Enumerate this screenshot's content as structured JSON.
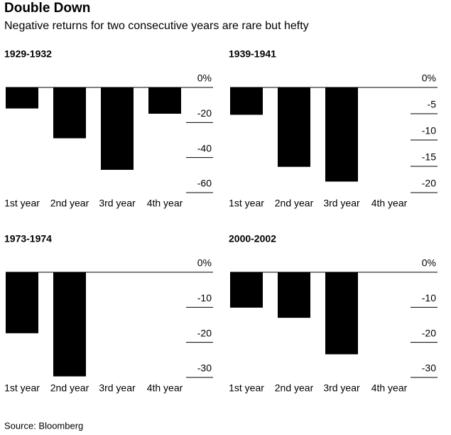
{
  "title": "Double Down",
  "subtitle": "Negative returns for two consecutive years are rare but hefty",
  "source": "Source: Bloomberg",
  "chart_data": [
    {
      "type": "bar",
      "title": "1929-1932",
      "categories": [
        "1st year",
        "2nd year",
        "3rd year",
        "4th year"
      ],
      "values": [
        -12,
        -29,
        -47,
        -15
      ],
      "color": "#000000",
      "ylim": [
        -60,
        0
      ],
      "yticks": [
        {
          "value": 0,
          "label": "0%"
        },
        -20,
        -40,
        -60
      ]
    },
    {
      "type": "bar",
      "title": "1939-1941",
      "categories": [
        "1st year",
        "2nd year",
        "3rd year",
        "4th year"
      ],
      "values": [
        -5.2,
        -15.1,
        -17.9,
        null
      ],
      "color": "#000000",
      "ylim": [
        -20,
        0
      ],
      "yticks": [
        {
          "value": 0,
          "label": "0%"
        },
        -5,
        -10,
        -15,
        -20
      ]
    },
    {
      "type": "bar",
      "title": "1973-1974",
      "categories": [
        "1st year",
        "2nd year",
        "3rd year",
        "4th year"
      ],
      "values": [
        -17.4,
        -29.7,
        null,
        null
      ],
      "color": "#000000",
      "ylim": [
        -30,
        0
      ],
      "yticks": [
        {
          "value": 0,
          "label": "0%"
        },
        -10,
        -20,
        -30
      ]
    },
    {
      "type": "bar",
      "title": "2000-2002",
      "categories": [
        "1st year",
        "2nd year",
        "3rd year",
        "4th year"
      ],
      "values": [
        -10.1,
        -13,
        -23.4,
        null
      ],
      "color": "#000000",
      "ylim": [
        -30,
        0
      ],
      "yticks": [
        {
          "value": 0,
          "label": "0%"
        },
        -10,
        -20,
        -30
      ]
    }
  ]
}
